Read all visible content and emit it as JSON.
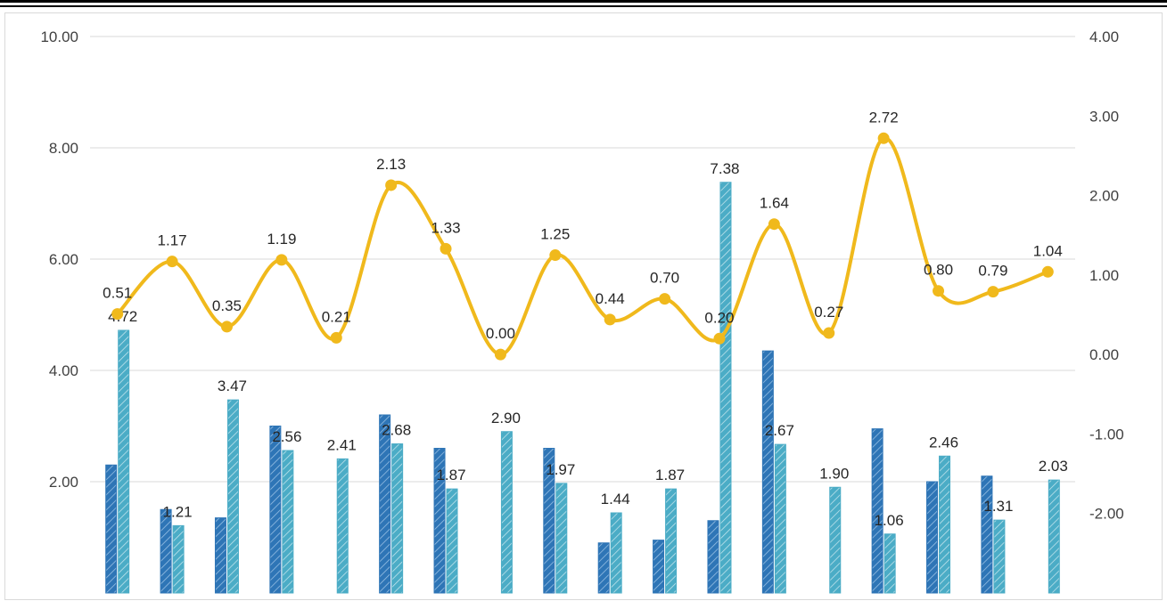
{
  "chart_data": {
    "type": "bar",
    "series": [
      {
        "kind": "bar",
        "axis": "left",
        "color": "#2e75b6",
        "values": [
          2.3,
          1.5,
          1.35,
          3.0,
          null,
          3.2,
          2.6,
          null,
          2.6,
          0.9,
          0.95,
          1.3,
          4.35,
          null,
          2.95,
          2.0,
          2.1,
          null
        ]
      },
      {
        "kind": "bar",
        "axis": "left",
        "color": "#4bacc6",
        "values": [
          4.72,
          1.21,
          3.47,
          2.56,
          2.41,
          2.68,
          1.87,
          2.9,
          1.97,
          1.44,
          1.87,
          7.38,
          2.67,
          1.9,
          1.06,
          2.46,
          1.31,
          2.03
        ]
      },
      {
        "kind": "line",
        "axis": "right",
        "color": "#f0b91c",
        "values": [
          0.51,
          1.17,
          0.35,
          1.19,
          0.21,
          2.13,
          1.33,
          0.0,
          1.25,
          0.44,
          0.7,
          0.2,
          1.64,
          0.27,
          2.72,
          0.8,
          0.79,
          1.04
        ]
      }
    ],
    "line_labels": [
      "0.51",
      "1.17",
      "0.35",
      "1.19",
      "0.21",
      "2.13",
      "1.33",
      "0.00",
      "1.25",
      "0.44",
      "0.70",
      "0.20",
      "1.64",
      "0.27",
      "2.72",
      "0.80",
      "0.79",
      "1.04"
    ],
    "bar_labels": [
      "4.72",
      "1.21",
      "3.47",
      "2.56",
      "2.41",
      "2.68",
      "1.87",
      "2.90",
      "1.97",
      "1.44",
      "1.87",
      "7.38",
      "2.67",
      "1.90",
      "1.06",
      "2.46",
      "1.31",
      "2.03"
    ],
    "left_ticks": [
      "10.00",
      "8.00",
      "6.00",
      "4.00",
      "2.00"
    ],
    "right_ticks": [
      "4.00",
      "3.00",
      "2.00",
      "1.00",
      "0.00",
      "-1.00",
      "-2.00"
    ],
    "ylim_left": [
      0,
      10
    ],
    "ylim_right": [
      -3,
      4
    ],
    "grid": true,
    "grid_color": "#d9d9d9",
    "frame_color": "#d9d9d9"
  }
}
